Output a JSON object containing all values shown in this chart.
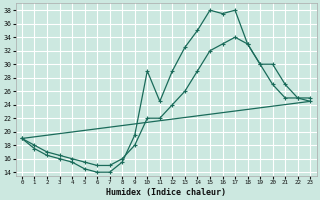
{
  "xlabel": "Humidex (Indice chaleur)",
  "xlim": [
    -0.5,
    23.5
  ],
  "ylim": [
    13.5,
    39
  ],
  "yticks": [
    14,
    16,
    18,
    20,
    22,
    24,
    26,
    28,
    30,
    32,
    34,
    36,
    38
  ],
  "xticks": [
    0,
    1,
    2,
    3,
    4,
    5,
    6,
    7,
    8,
    9,
    10,
    11,
    12,
    13,
    14,
    15,
    16,
    17,
    18,
    19,
    20,
    21,
    22,
    23
  ],
  "bg_color": "#cce8e0",
  "line_color": "#1a6b5a",
  "grid_color": "#ffffff",
  "line1_x": [
    0,
    1,
    2,
    3,
    4,
    5,
    6,
    7,
    8,
    9,
    10,
    11,
    12,
    13,
    14,
    15,
    16,
    17,
    18,
    19,
    20,
    21,
    22,
    23
  ],
  "line1_y": [
    19,
    17.5,
    16.5,
    16,
    15.5,
    14.5,
    14,
    14,
    15.5,
    19.5,
    29,
    24.5,
    29,
    32.5,
    35,
    38,
    37.5,
    38,
    33,
    30,
    27,
    25,
    25,
    24.5
  ],
  "line2_x": [
    0,
    1,
    2,
    3,
    4,
    5,
    6,
    7,
    8,
    9,
    10,
    11,
    12,
    13,
    14,
    15,
    16,
    17,
    18,
    19,
    20,
    21,
    22,
    23
  ],
  "line2_y": [
    19,
    18,
    17,
    16.5,
    16,
    15.5,
    15,
    15,
    16,
    18,
    22,
    22,
    24,
    26,
    29,
    32,
    33,
    34,
    33,
    30,
    30,
    27,
    25,
    25
  ],
  "line3_x": [
    0,
    23
  ],
  "line3_y": [
    19,
    24.5
  ]
}
